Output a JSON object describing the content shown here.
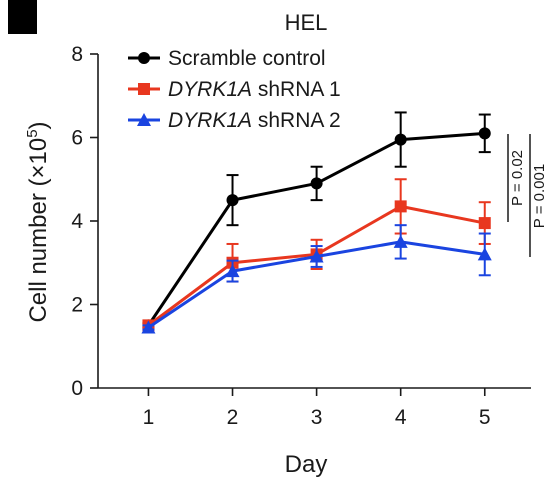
{
  "chart_data": {
    "type": "line",
    "title": "HEL",
    "xlabel": "Day",
    "ylabel": "Cell number (×10",
    "ylabel_sup": "5",
    "ylabel_close": ")",
    "x": [
      1,
      2,
      3,
      4,
      5
    ],
    "xlim": [
      0.4,
      5.55
    ],
    "ylim": [
      0,
      8
    ],
    "xticks": [
      "1",
      "2",
      "3",
      "4",
      "5"
    ],
    "yticks": [
      "0",
      "2",
      "4",
      "6",
      "8"
    ],
    "grid": false,
    "legend_position": "top-left",
    "series": [
      {
        "name": "Scramble control",
        "name_italic": "",
        "name_rest": "Scramble control",
        "color": "#000000",
        "marker": "circle",
        "values": [
          1.5,
          4.5,
          4.9,
          5.95,
          6.1
        ],
        "errors": [
          0.05,
          0.6,
          0.4,
          0.65,
          0.45
        ]
      },
      {
        "name": "DYRK1A shRNA 1",
        "name_italic": "DYRK1A",
        "name_rest": " shRNA 1",
        "color": "#e8371f",
        "marker": "square",
        "values": [
          1.5,
          3.0,
          3.2,
          4.35,
          3.95
        ],
        "errors": [
          0.05,
          0.45,
          0.35,
          0.65,
          0.5
        ]
      },
      {
        "name": "DYRK1A shRNA 2",
        "name_italic": "DYRK1A",
        "name_rest": " shRNA 2",
        "color": "#1a44e0",
        "marker": "triangle",
        "values": [
          1.45,
          2.8,
          3.15,
          3.5,
          3.2
        ],
        "errors": [
          0.05,
          0.25,
          0.25,
          0.4,
          0.5
        ]
      }
    ],
    "annotations": [
      {
        "text": "P = 0.02",
        "between": [
          "Scramble control",
          "DYRK1A shRNA 1"
        ]
      },
      {
        "text": "P = 0.001",
        "between": [
          "Scramble control",
          "DYRK1A shRNA 2"
        ]
      }
    ]
  }
}
